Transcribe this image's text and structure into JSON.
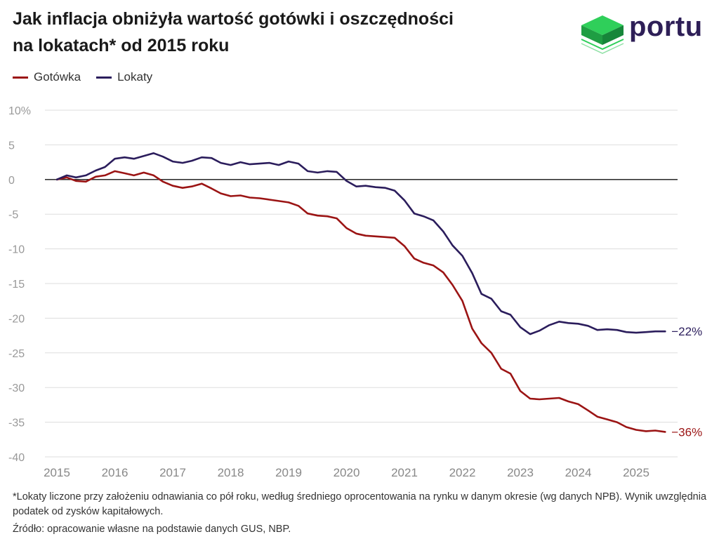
{
  "header": {
    "title_line1": "Jak inflacja obniżyła wartość gotówki i oszczędności",
    "title_line2": "na lokatach* od 2015 roku",
    "logo_text": "portu"
  },
  "colors": {
    "gotowka": "#9b1414",
    "lokaty": "#2b1d5c",
    "logo_green": "#22b24c",
    "grid": "#dddddd",
    "axis_text": "#999999"
  },
  "footer": {
    "note": "*Lokaty liczone przy założeniu odnawiania co pół roku, według średniego oprocentowania na rynku w danym okresie (wg danych NPB). Wynik uwzględnia podatek od zysków kapitałowych.",
    "source": "Źródło: opracowanie własne na podstawie danych GUS, NBP."
  },
  "chart_data": {
    "type": "line",
    "title": "Jak inflacja obniżyła wartość gotówki i oszczędności na lokatach* od 2015 roku",
    "xlabel": "",
    "ylabel": "",
    "xlim": [
      2015.0,
      2025.6
    ],
    "ylim": [
      -40,
      10
    ],
    "yticks": [
      10,
      5,
      0,
      -5,
      -10,
      -15,
      -20,
      -25,
      -30,
      -35,
      -40
    ],
    "ytick_labels": [
      "10%",
      "5",
      "0",
      "-5",
      "-10",
      "-15",
      "-20",
      "-25",
      "-30",
      "-35",
      "-40"
    ],
    "xticks": [
      2015,
      2016,
      2017,
      2018,
      2019,
      2020,
      2021,
      2022,
      2023,
      2024,
      2025
    ],
    "xtick_labels": [
      "2015",
      "2016",
      "2017",
      "2018",
      "2019",
      "2020",
      "2021",
      "2022",
      "2023",
      "2024",
      "2025"
    ],
    "grid": true,
    "legend": "top-left",
    "series": [
      {
        "name": "Gotówka",
        "color": "#9b1414",
        "end_label": "−36%",
        "points": [
          [
            2015.0,
            0
          ],
          [
            2015.17,
            0.3
          ],
          [
            2015.33,
            -0.2
          ],
          [
            2015.5,
            -0.3
          ],
          [
            2015.67,
            0.4
          ],
          [
            2015.83,
            0.6
          ],
          [
            2016.0,
            1.2
          ],
          [
            2016.17,
            0.9
          ],
          [
            2016.33,
            0.6
          ],
          [
            2016.5,
            1.0
          ],
          [
            2016.67,
            0.6
          ],
          [
            2016.83,
            -0.3
          ],
          [
            2017.0,
            -0.9
          ],
          [
            2017.17,
            -1.2
          ],
          [
            2017.33,
            -1.0
          ],
          [
            2017.5,
            -0.6
          ],
          [
            2017.67,
            -1.3
          ],
          [
            2017.83,
            -2.0
          ],
          [
            2018.0,
            -2.4
          ],
          [
            2018.17,
            -2.3
          ],
          [
            2018.33,
            -2.6
          ],
          [
            2018.5,
            -2.7
          ],
          [
            2018.67,
            -2.9
          ],
          [
            2018.83,
            -3.1
          ],
          [
            2019.0,
            -3.3
          ],
          [
            2019.17,
            -3.8
          ],
          [
            2019.33,
            -4.9
          ],
          [
            2019.5,
            -5.2
          ],
          [
            2019.67,
            -5.3
          ],
          [
            2019.83,
            -5.6
          ],
          [
            2020.0,
            -7.0
          ],
          [
            2020.17,
            -7.8
          ],
          [
            2020.33,
            -8.1
          ],
          [
            2020.5,
            -8.2
          ],
          [
            2020.67,
            -8.3
          ],
          [
            2020.83,
            -8.4
          ],
          [
            2021.0,
            -9.6
          ],
          [
            2021.17,
            -11.4
          ],
          [
            2021.33,
            -12.0
          ],
          [
            2021.5,
            -12.4
          ],
          [
            2021.67,
            -13.4
          ],
          [
            2021.83,
            -15.2
          ],
          [
            2022.0,
            -17.5
          ],
          [
            2022.17,
            -21.5
          ],
          [
            2022.33,
            -23.6
          ],
          [
            2022.5,
            -25.0
          ],
          [
            2022.67,
            -27.3
          ],
          [
            2022.83,
            -28.0
          ],
          [
            2023.0,
            -30.5
          ],
          [
            2023.17,
            -31.6
          ],
          [
            2023.33,
            -31.7
          ],
          [
            2023.5,
            -31.6
          ],
          [
            2023.67,
            -31.5
          ],
          [
            2023.83,
            -32.0
          ],
          [
            2024.0,
            -32.4
          ],
          [
            2024.17,
            -33.3
          ],
          [
            2024.33,
            -34.2
          ],
          [
            2024.5,
            -34.6
          ],
          [
            2024.67,
            -35.0
          ],
          [
            2024.83,
            -35.7
          ],
          [
            2025.0,
            -36.1
          ],
          [
            2025.17,
            -36.3
          ],
          [
            2025.33,
            -36.2
          ],
          [
            2025.5,
            -36.4
          ]
        ]
      },
      {
        "name": "Lokaty",
        "color": "#2b1d5c",
        "end_label": "−22%",
        "points": [
          [
            2015.0,
            0
          ],
          [
            2015.17,
            0.6
          ],
          [
            2015.33,
            0.3
          ],
          [
            2015.5,
            0.6
          ],
          [
            2015.67,
            1.3
          ],
          [
            2015.83,
            1.8
          ],
          [
            2016.0,
            3.0
          ],
          [
            2016.17,
            3.2
          ],
          [
            2016.33,
            3.0
          ],
          [
            2016.5,
            3.4
          ],
          [
            2016.67,
            3.8
          ],
          [
            2016.83,
            3.3
          ],
          [
            2017.0,
            2.6
          ],
          [
            2017.17,
            2.4
          ],
          [
            2017.33,
            2.7
          ],
          [
            2017.5,
            3.2
          ],
          [
            2017.67,
            3.1
          ],
          [
            2017.83,
            2.4
          ],
          [
            2018.0,
            2.1
          ],
          [
            2018.17,
            2.5
          ],
          [
            2018.33,
            2.2
          ],
          [
            2018.5,
            2.3
          ],
          [
            2018.67,
            2.4
          ],
          [
            2018.83,
            2.1
          ],
          [
            2019.0,
            2.6
          ],
          [
            2019.17,
            2.3
          ],
          [
            2019.33,
            1.2
          ],
          [
            2019.5,
            1.0
          ],
          [
            2019.67,
            1.2
          ],
          [
            2019.83,
            1.1
          ],
          [
            2020.0,
            -0.2
          ],
          [
            2020.17,
            -1.0
          ],
          [
            2020.33,
            -0.9
          ],
          [
            2020.5,
            -1.1
          ],
          [
            2020.67,
            -1.2
          ],
          [
            2020.83,
            -1.6
          ],
          [
            2021.0,
            -3.0
          ],
          [
            2021.17,
            -4.9
          ],
          [
            2021.33,
            -5.3
          ],
          [
            2021.5,
            -5.9
          ],
          [
            2021.67,
            -7.5
          ],
          [
            2021.83,
            -9.5
          ],
          [
            2022.0,
            -11.0
          ],
          [
            2022.17,
            -13.5
          ],
          [
            2022.33,
            -16.5
          ],
          [
            2022.5,
            -17.2
          ],
          [
            2022.67,
            -19.0
          ],
          [
            2022.83,
            -19.5
          ],
          [
            2023.0,
            -21.3
          ],
          [
            2023.17,
            -22.3
          ],
          [
            2023.33,
            -21.8
          ],
          [
            2023.5,
            -21.0
          ],
          [
            2023.67,
            -20.5
          ],
          [
            2023.83,
            -20.7
          ],
          [
            2024.0,
            -20.8
          ],
          [
            2024.17,
            -21.1
          ],
          [
            2024.33,
            -21.7
          ],
          [
            2024.5,
            -21.6
          ],
          [
            2024.67,
            -21.7
          ],
          [
            2024.83,
            -22.0
          ],
          [
            2025.0,
            -22.1
          ],
          [
            2025.17,
            -22.0
          ],
          [
            2025.33,
            -21.9
          ],
          [
            2025.5,
            -21.9
          ]
        ]
      }
    ]
  }
}
